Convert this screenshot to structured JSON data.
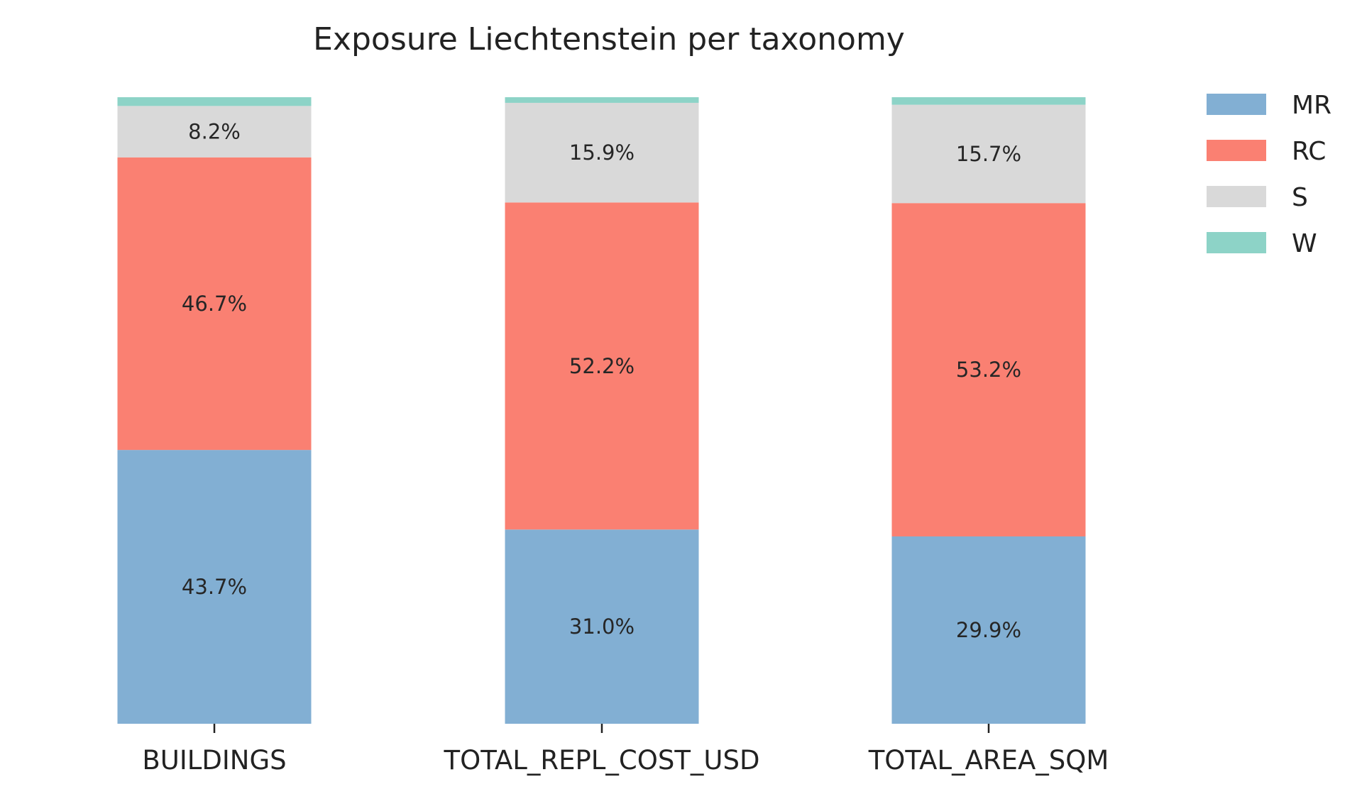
{
  "chart_data": {
    "type": "bar",
    "stacked": true,
    "title": "Exposure Liechtenstein per taxonomy",
    "xlabel": "",
    "ylabel": "",
    "categories": [
      "BUILDINGS",
      "TOTAL_REPL_COST_USD",
      "TOTAL_AREA_SQM"
    ],
    "ylim": [
      0,
      100
    ],
    "grid": false,
    "legend_position": "top-right",
    "series": [
      {
        "name": "MR",
        "color": "#82afd3",
        "values": [
          43.7,
          31.0,
          29.9
        ],
        "labels": [
          "43.7%",
          "31.0%",
          "29.9%"
        ]
      },
      {
        "name": "RC",
        "color": "#fa8072",
        "values": [
          46.7,
          52.2,
          53.2
        ],
        "labels": [
          "46.7%",
          "52.2%",
          "53.2%"
        ]
      },
      {
        "name": "S",
        "color": "#d9d9d9",
        "values": [
          8.2,
          15.9,
          15.7
        ],
        "labels": [
          "8.2%",
          "15.9%",
          "15.7%"
        ]
      },
      {
        "name": "W",
        "color": "#8dd3c7",
        "values": [
          1.4,
          0.9,
          1.2
        ],
        "labels": [
          "",
          "",
          ""
        ]
      }
    ]
  }
}
